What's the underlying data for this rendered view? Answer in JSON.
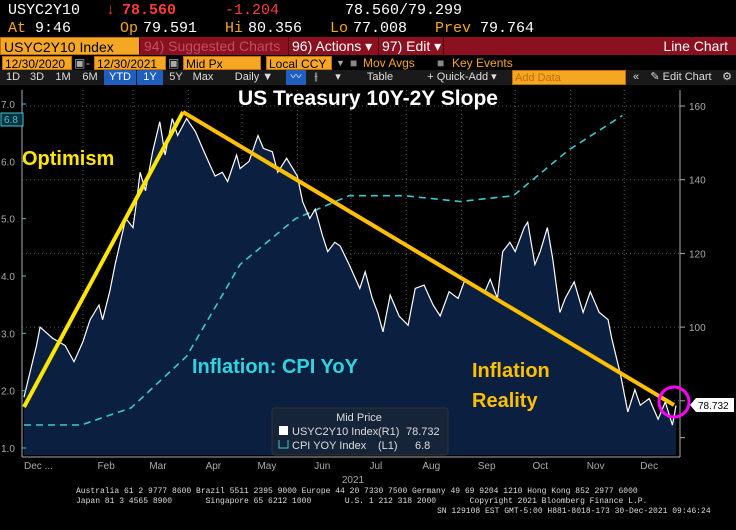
{
  "header": {
    "ticker": "USYC2Y10",
    "arrow": "↓",
    "last": "78.560",
    "change": "-1.204",
    "bid_ask": "78.560/79.299",
    "at_label": "At",
    "at": "9:46",
    "op_label": "Op",
    "op": "79.591",
    "hi_label": "Hi",
    "hi": "80.356",
    "lo_label": "Lo",
    "lo": "77.008",
    "prev_label": "Prev",
    "prev": "79.764"
  },
  "toolbar": {
    "security": "USYC2Y10 Index",
    "suggested": "94) Suggested Charts",
    "actions": "96) Actions ▾",
    "edit": "97) Edit ▾",
    "chart_type": "Line Chart",
    "start_date": "12/30/2020",
    "end_date": "12/30/2021",
    "dash": "-",
    "field": "Mid Px",
    "currency": "Local CCY",
    "mov_avgs": "Mov Avgs",
    "key_events": "Key Events",
    "periods": [
      "1D",
      "3D",
      "1M",
      "6M",
      "YTD",
      "1Y",
      "5Y",
      "Max"
    ],
    "selected_periods": [
      "YTD",
      "1Y"
    ],
    "frequency": "Daily ▼",
    "table": "Table",
    "quick_add": "+ Quick-Add ▾",
    "add_data_placeholder": "Add Data",
    "collapse": "«",
    "edit_chart": "✎ Edit Chart",
    "settings": "⚙"
  },
  "chart_data": {
    "type": "line",
    "title": "US Treasury 10Y-2Y Slope",
    "annotations": {
      "optimism": "Optimism",
      "cpi": "Inflation: CPI YoY",
      "reality1": "Inflation",
      "reality2": "Reality"
    },
    "left_axis": {
      "ylim": [
        1.0,
        7.0
      ],
      "ticks": [
        "1.0",
        "2.0",
        "3.0",
        "4.0",
        "5.0",
        "6.0",
        "7.0"
      ],
      "last_tag": "6.8"
    },
    "right_axis": {
      "ylim": [
        70,
        162
      ],
      "ticks": [
        "100",
        "120",
        "140",
        "160"
      ],
      "last_tag": "78.732"
    },
    "x_labels": [
      "Dec ...",
      "Feb",
      "Mar",
      "Apr",
      "May",
      "Jun",
      "Jul",
      "Aug",
      "Sep",
      "Oct",
      "Nov",
      "Dec"
    ],
    "year_label": "2021",
    "grid": true,
    "legend": {
      "title": "Mid Price",
      "placement": "bottom-center",
      "entries": [
        {
          "name": "USYC2Y10 Index",
          "axis": "(R1)",
          "value": "78.732"
        },
        {
          "name": "CPI YOY Index",
          "axis": "(L1)",
          "value": "6.8"
        }
      ]
    },
    "colors": {
      "slope": "#ffffff",
      "fill": "#0b2040",
      "cpi": "#3cc8d0",
      "optimism": "#ffe600",
      "decline": "#ffc000",
      "circle": "#ff00ff"
    },
    "series": [
      {
        "name": "USYC2Y10 Index",
        "axis": "right",
        "points": [
          [
            "2020-12-30",
            81
          ],
          [
            "2021-01-06",
            95
          ],
          [
            "2021-01-08",
            100
          ],
          [
            "2021-01-15",
            97
          ],
          [
            "2021-01-22",
            95
          ],
          [
            "2021-01-27",
            90.6
          ],
          [
            "2021-02-01",
            96
          ],
          [
            "2021-02-05",
            102
          ],
          [
            "2021-02-10",
            106
          ],
          [
            "2021-02-12",
            102
          ],
          [
            "2021-02-16",
            109.6
          ],
          [
            "2021-02-19",
            117
          ],
          [
            "2021-02-25",
            129.5
          ],
          [
            "2021-03-01",
            127
          ],
          [
            "2021-03-03",
            134
          ],
          [
            "2021-03-05",
            142
          ],
          [
            "2021-03-08",
            137
          ],
          [
            "2021-03-12",
            147.6
          ],
          [
            "2021-03-16",
            155.7
          ],
          [
            "2021-03-19",
            146.7
          ],
          [
            "2021-03-23",
            156.6
          ],
          [
            "2021-03-26",
            152
          ],
          [
            "2021-03-31",
            156.6
          ],
          [
            "2021-04-05",
            153
          ],
          [
            "2021-04-09",
            148.5
          ],
          [
            "2021-04-14",
            143
          ],
          [
            "2021-04-16",
            141
          ],
          [
            "2021-04-20",
            142
          ],
          [
            "2021-04-23",
            139.5
          ],
          [
            "2021-04-28",
            146.7
          ],
          [
            "2021-04-30",
            143
          ],
          [
            "2021-05-05",
            145
          ],
          [
            "2021-05-10",
            152
          ],
          [
            "2021-05-13",
            148.5
          ],
          [
            "2021-05-18",
            147.6
          ],
          [
            "2021-05-21",
            142
          ],
          [
            "2021-05-26",
            145.8
          ],
          [
            "2021-06-01",
            141
          ],
          [
            "2021-06-04",
            134
          ],
          [
            "2021-06-08",
            129.5
          ],
          [
            "2021-06-11",
            132
          ],
          [
            "2021-06-15",
            125
          ],
          [
            "2021-06-18",
            120.5
          ],
          [
            "2021-06-22",
            123
          ],
          [
            "2021-06-25",
            122
          ],
          [
            "2021-06-30",
            117
          ],
          [
            "2021-07-06",
            110.5
          ],
          [
            "2021-07-09",
            115
          ],
          [
            "2021-07-13",
            107.8
          ],
          [
            "2021-07-16",
            104
          ],
          [
            "2021-07-19",
            98.7
          ],
          [
            "2021-07-23",
            108.7
          ],
          [
            "2021-07-28",
            103
          ],
          [
            "2021-08-02",
            100.5
          ],
          [
            "2021-08-06",
            110.5
          ],
          [
            "2021-08-11",
            111.4
          ],
          [
            "2021-08-16",
            106
          ],
          [
            "2021-08-20",
            103
          ],
          [
            "2021-08-25",
            109.6
          ],
          [
            "2021-08-30",
            107.8
          ],
          [
            "2021-09-03",
            113
          ],
          [
            "2021-09-08",
            111.4
          ],
          [
            "2021-09-14",
            109.6
          ],
          [
            "2021-09-17",
            113
          ],
          [
            "2021-09-21",
            107.8
          ],
          [
            "2021-09-24",
            120.5
          ],
          [
            "2021-09-28",
            123
          ],
          [
            "2021-10-01",
            120.5
          ],
          [
            "2021-10-06",
            127
          ],
          [
            "2021-10-08",
            128.5
          ],
          [
            "2021-10-12",
            117
          ],
          [
            "2021-10-15",
            120.5
          ],
          [
            "2021-10-19",
            127
          ],
          [
            "2021-10-22",
            118.6
          ],
          [
            "2021-10-26",
            104
          ],
          [
            "2021-10-29",
            107.8
          ],
          [
            "2021-11-03",
            112.3
          ],
          [
            "2021-11-08",
            104
          ],
          [
            "2021-11-12",
            109.6
          ],
          [
            "2021-11-17",
            104
          ],
          [
            "2021-11-22",
            102
          ],
          [
            "2021-11-24",
            97
          ],
          [
            "2021-11-29",
            87
          ],
          [
            "2021-12-03",
            77
          ],
          [
            "2021-12-07",
            83
          ],
          [
            "2021-12-10",
            78.8
          ],
          [
            "2021-12-15",
            80.6
          ],
          [
            "2021-12-20",
            75
          ],
          [
            "2021-12-24",
            79.7
          ],
          [
            "2021-12-28",
            73.4
          ],
          [
            "2021-12-30",
            78.732
          ]
        ]
      },
      {
        "name": "CPI YOY Index",
        "axis": "left",
        "points": [
          [
            "2020-12-30",
            1.4
          ],
          [
            "2021-01-31",
            1.4
          ],
          [
            "2021-02-28",
            1.7
          ],
          [
            "2021-03-31",
            2.6
          ],
          [
            "2021-04-30",
            4.2
          ],
          [
            "2021-05-31",
            5.0
          ],
          [
            "2021-06-30",
            5.4
          ],
          [
            "2021-07-31",
            5.4
          ],
          [
            "2021-08-31",
            5.3
          ],
          [
            "2021-09-30",
            5.4
          ],
          [
            "2021-10-31",
            6.2
          ],
          [
            "2021-11-30",
            6.8
          ]
        ]
      }
    ]
  },
  "footer": {
    "line1": "Australia 61 2 9777 8600 Brazil 5511 2395 9000 Europe 44 20 7330 7500 Germany 49 69 9204 1210 Hong Kong 852 2977 6000",
    "line2": "Japan 81 3 4565 8900       Singapore 65 6212 1000       U.S. 1 212 318 2000       Copyright 2021 Bloomberg Finance L.P.",
    "line3": "SN 129108 EST  GMT-5:00 H881-8018-173 30-Dec-2021 09:46:24"
  }
}
